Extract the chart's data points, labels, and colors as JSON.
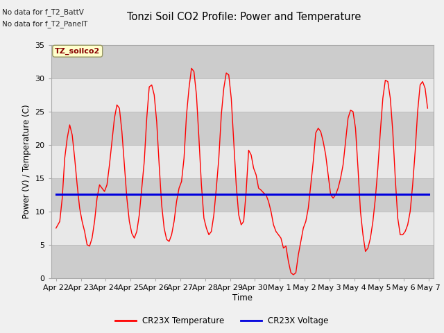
{
  "title": "Tonzi Soil CO2 Profile: Power and Temperature",
  "ylabel": "Power (V) / Temperature (C)",
  "xlabel": "Time",
  "no_data_text1": "No data for f_T2_BattV",
  "no_data_text2": "No data for f_T2_PanelT",
  "box_label": "TZ_soilco2",
  "ylim": [
    0,
    35
  ],
  "legend_temp": "CR23X Temperature",
  "legend_volt": "CR23X Voltage",
  "fig_bg_color": "#f0f0f0",
  "plot_bg_color": "#e8e8e8",
  "temp_color": "#ff0000",
  "volt_color": "#0000dd",
  "box_face_color": "#ffffcc",
  "box_edge_color": "#999966",
  "box_text_color": "#880000",
  "xtick_labels": [
    "Apr 22",
    "Apr 23",
    "Apr 24",
    "Apr 25",
    "Apr 26",
    "Apr 27",
    "Apr 28",
    "Apr 29",
    "Apr 30",
    "May 1",
    "May 2",
    "May 3",
    "May 4",
    "May 5",
    "May 6",
    "May 7"
  ],
  "ytick_vals": [
    0,
    5,
    10,
    15,
    20,
    25,
    30,
    35
  ],
  "voltage_value": 12.55,
  "temp_x": [
    0.0,
    0.15,
    0.25,
    0.35,
    0.45,
    0.55,
    0.65,
    0.75,
    0.85,
    0.95,
    1.05,
    1.15,
    1.25,
    1.35,
    1.45,
    1.55,
    1.65,
    1.75,
    1.85,
    1.95,
    2.05,
    2.15,
    2.25,
    2.35,
    2.45,
    2.55,
    2.65,
    2.75,
    2.85,
    2.95,
    3.05,
    3.15,
    3.25,
    3.35,
    3.45,
    3.55,
    3.65,
    3.75,
    3.85,
    3.95,
    4.05,
    4.15,
    4.25,
    4.35,
    4.45,
    4.55,
    4.65,
    4.75,
    4.85,
    4.95,
    5.05,
    5.15,
    5.25,
    5.35,
    5.45,
    5.55,
    5.65,
    5.75,
    5.85,
    5.95,
    6.05,
    6.15,
    6.25,
    6.35,
    6.45,
    6.55,
    6.65,
    6.75,
    6.85,
    6.95,
    7.05,
    7.15,
    7.25,
    7.35,
    7.45,
    7.55,
    7.65,
    7.75,
    7.85,
    7.95,
    8.05,
    8.15,
    8.25,
    8.35,
    8.45,
    8.55,
    8.65,
    8.75,
    8.85,
    8.95,
    9.05,
    9.15,
    9.25,
    9.35,
    9.45,
    9.55,
    9.65,
    9.75,
    9.85,
    9.95,
    10.05,
    10.15,
    10.25,
    10.35,
    10.45,
    10.55,
    10.65,
    10.75,
    10.85,
    10.95,
    11.05,
    11.15,
    11.25,
    11.35,
    11.45,
    11.55,
    11.65,
    11.75,
    11.85,
    11.95,
    12.05,
    12.15,
    12.25,
    12.35,
    12.45,
    12.55,
    12.65,
    12.75,
    12.85,
    12.95,
    13.05,
    13.15,
    13.25,
    13.35,
    13.45,
    13.55,
    13.65,
    13.75,
    13.85,
    13.95,
    14.05,
    14.15,
    14.25,
    14.35,
    14.45,
    14.55,
    14.65,
    14.75,
    14.85,
    14.95
  ],
  "temp_y": [
    7.5,
    8.5,
    12.0,
    18.0,
    21.0,
    23.0,
    21.5,
    18.0,
    14.0,
    10.5,
    8.5,
    7.0,
    5.0,
    4.8,
    6.0,
    8.5,
    12.0,
    14.0,
    13.5,
    13.0,
    14.0,
    17.0,
    20.5,
    24.0,
    26.0,
    25.5,
    22.0,
    17.0,
    12.0,
    8.5,
    6.7,
    6.0,
    7.0,
    9.5,
    13.5,
    17.5,
    24.0,
    28.7,
    29.0,
    27.5,
    23.5,
    17.0,
    11.0,
    7.5,
    5.8,
    5.5,
    6.5,
    8.5,
    11.5,
    13.5,
    14.5,
    18.0,
    24.5,
    28.5,
    31.5,
    31.0,
    27.5,
    21.0,
    14.0,
    9.0,
    7.5,
    6.5,
    7.0,
    9.5,
    13.5,
    18.0,
    24.5,
    28.5,
    30.8,
    30.5,
    27.0,
    20.5,
    14.0,
    9.5,
    8.0,
    8.5,
    13.0,
    19.2,
    18.5,
    16.5,
    15.5,
    13.5,
    13.2,
    12.8,
    12.5,
    11.5,
    10.0,
    8.0,
    7.0,
    6.5,
    6.0,
    4.5,
    4.8,
    2.5,
    0.8,
    0.5,
    0.8,
    3.5,
    5.5,
    7.5,
    8.5,
    10.5,
    14.0,
    17.5,
    21.8,
    22.5,
    22.0,
    20.5,
    18.5,
    15.5,
    12.5,
    12.0,
    12.5,
    13.5,
    15.0,
    17.0,
    20.5,
    24.0,
    25.2,
    25.0,
    22.5,
    16.5,
    10.0,
    6.5,
    4.0,
    4.5,
    6.0,
    8.5,
    12.0,
    16.5,
    22.0,
    27.0,
    29.7,
    29.5,
    27.0,
    22.0,
    15.0,
    9.0,
    6.5,
    6.5,
    7.0,
    8.0,
    10.0,
    14.0,
    19.0,
    25.0,
    29.0,
    29.5,
    28.5,
    25.5
  ]
}
